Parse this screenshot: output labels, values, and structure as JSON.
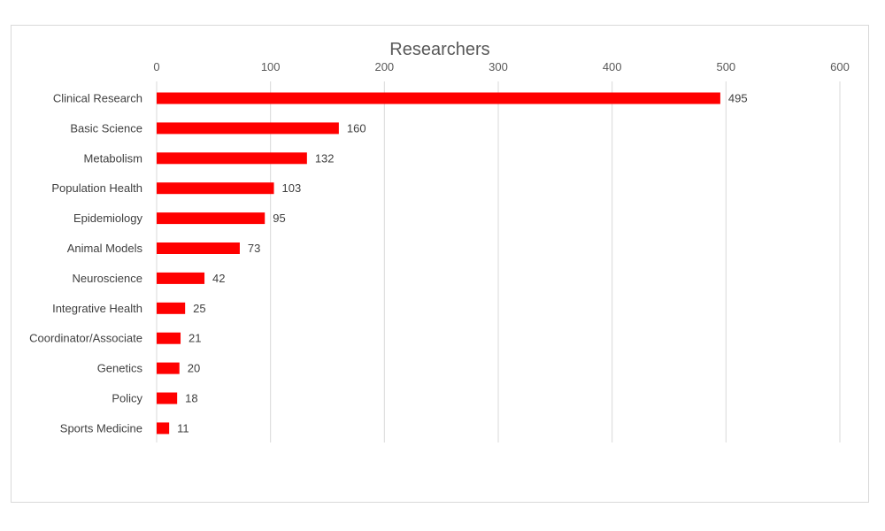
{
  "chart_data": {
    "type": "bar",
    "orientation": "horizontal",
    "title": "Researchers",
    "categories": [
      "Clinical Research",
      "Basic Science",
      "Metabolism",
      "Population Health",
      "Epidemiology",
      "Animal Models",
      "Neuroscience",
      "Integrative Health",
      "Coordinator/Associate",
      "Genetics",
      "Policy",
      "Sports Medicine"
    ],
    "values": [
      495,
      160,
      132,
      103,
      95,
      73,
      42,
      25,
      21,
      20,
      18,
      11
    ],
    "xlim": [
      0,
      600
    ],
    "x_ticks": [
      0,
      100,
      200,
      300,
      400,
      500,
      600
    ],
    "x_axis_position": "top",
    "grid": true,
    "legend": "none",
    "bar_color": "#ff0000",
    "data_labels": true
  }
}
